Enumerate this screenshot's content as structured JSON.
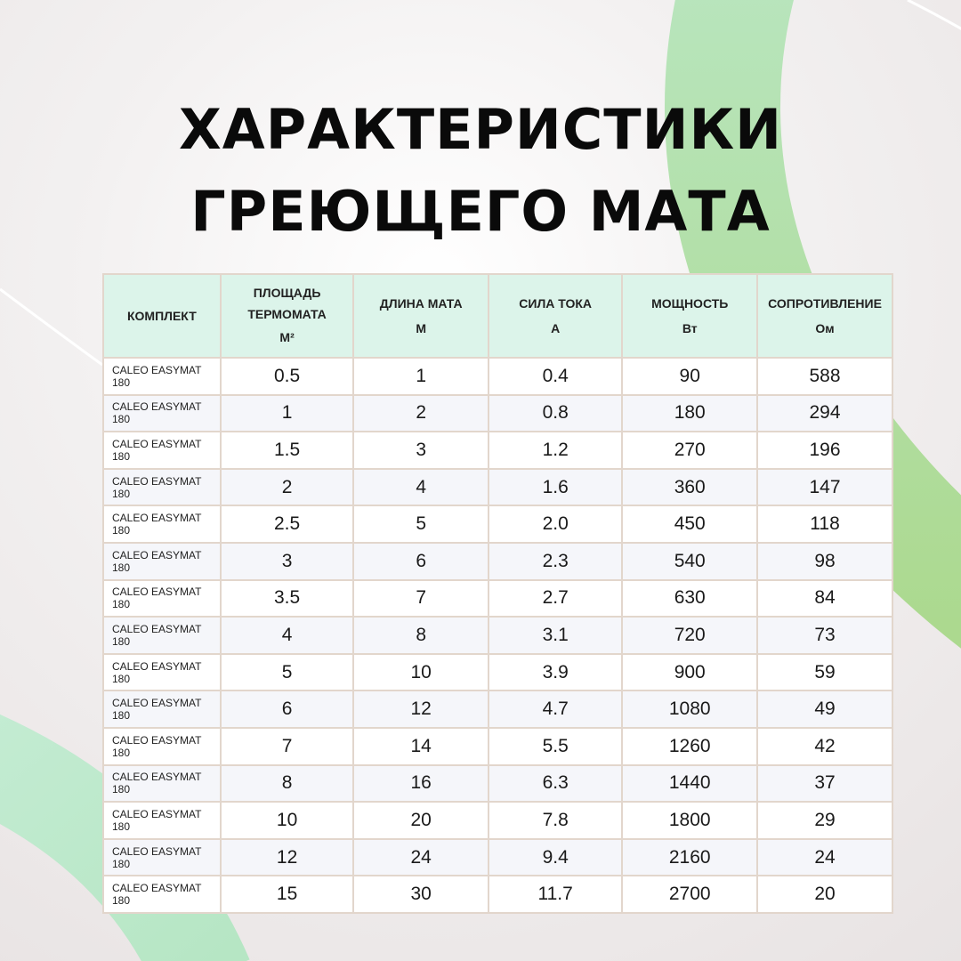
{
  "title": [
    "ХАРАКТЕРИСТИКИ",
    "ГРЕЮЩЕГО МАТА"
  ],
  "colors": {
    "accent_green": "#b4e3b9",
    "header_bg": "#dcf4ea",
    "border": "#e2d6cc"
  },
  "table": {
    "headers": [
      {
        "label": "КОМПЛЕКТ",
        "unit": ""
      },
      {
        "label": "ПЛОЩАДЬ ТЕРМОМАТА",
        "unit": "М²"
      },
      {
        "label": "ДЛИНА МАТА",
        "unit": "М"
      },
      {
        "label": "СИЛА ТОКА",
        "unit": "А"
      },
      {
        "label": "МОЩНОСТЬ",
        "unit": "Вт"
      },
      {
        "label": "СОПРОТИВЛЕНИЕ",
        "unit": "Ом"
      }
    ],
    "rows": [
      [
        "CALEO EASYMAT 180",
        "0.5",
        "1",
        "0.4",
        "90",
        "588"
      ],
      [
        "CALEO EASYMAT 180",
        "1",
        "2",
        "0.8",
        "180",
        "294"
      ],
      [
        "CALEO EASYMAT 180",
        "1.5",
        "3",
        "1.2",
        "270",
        "196"
      ],
      [
        "CALEO EASYMAT 180",
        "2",
        "4",
        "1.6",
        "360",
        "147"
      ],
      [
        "CALEO EASYMAT 180",
        "2.5",
        "5",
        "2.0",
        "450",
        "118"
      ],
      [
        "CALEO EASYMAT 180",
        "3",
        "6",
        "2.3",
        "540",
        "98"
      ],
      [
        "CALEO EASYMAT 180",
        "3.5",
        "7",
        "2.7",
        "630",
        "84"
      ],
      [
        "CALEO EASYMAT 180",
        "4",
        "8",
        "3.1",
        "720",
        "73"
      ],
      [
        "CALEO EASYMAT 180",
        "5",
        "10",
        "3.9",
        "900",
        "59"
      ],
      [
        "CALEO EASYMAT 180",
        "6",
        "12",
        "4.7",
        "1080",
        "49"
      ],
      [
        "CALEO EASYMAT 180",
        "7",
        "14",
        "5.5",
        "1260",
        "42"
      ],
      [
        "CALEO EASYMAT 180",
        "8",
        "16",
        "6.3",
        "1440",
        "37"
      ],
      [
        "CALEO EASYMAT 180",
        "10",
        "20",
        "7.8",
        "1800",
        "29"
      ],
      [
        "CALEO EASYMAT 180",
        "12",
        "24",
        "9.4",
        "2160",
        "24"
      ],
      [
        "CALEO EASYMAT 180",
        "15",
        "30",
        "11.7",
        "2700",
        "20"
      ]
    ]
  }
}
